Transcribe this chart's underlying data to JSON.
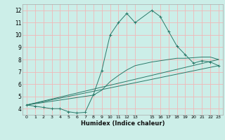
{
  "xlabel": "Humidex (Indice chaleur)",
  "background_color": "#cceee8",
  "grid_color": "#f0b8b8",
  "line_color": "#2a7a6a",
  "xlim": [
    -0.5,
    23.5
  ],
  "ylim": [
    3.5,
    12.5
  ],
  "xticks": [
    0,
    1,
    2,
    3,
    4,
    5,
    6,
    7,
    8,
    9,
    10,
    11,
    12,
    13,
    15,
    16,
    17,
    18,
    19,
    20,
    21,
    22,
    23
  ],
  "yticks": [
    4,
    5,
    6,
    7,
    8,
    9,
    10,
    11,
    12
  ],
  "series1_x": [
    0,
    1,
    2,
    3,
    4,
    5,
    6,
    7,
    8,
    9,
    10,
    11,
    12,
    13,
    15,
    16,
    17,
    18,
    19,
    20,
    21,
    22,
    23
  ],
  "series1_y": [
    4.3,
    4.2,
    4.1,
    4.0,
    4.0,
    3.75,
    3.65,
    3.7,
    5.15,
    7.1,
    10.0,
    11.0,
    11.75,
    11.0,
    12.0,
    11.5,
    10.3,
    9.1,
    8.4,
    7.7,
    7.9,
    7.8,
    7.5
  ],
  "series2_x": [
    0,
    23
  ],
  "series2_y": [
    4.3,
    7.5
  ],
  "series3_x": [
    0,
    23
  ],
  "series3_y": [
    4.3,
    8.0
  ],
  "series4_x": [
    0,
    8,
    9,
    10,
    11,
    12,
    13,
    15,
    16,
    17,
    18,
    19,
    20,
    21,
    22,
    23
  ],
  "series4_y": [
    4.3,
    5.1,
    5.5,
    6.2,
    6.7,
    7.15,
    7.5,
    7.8,
    7.9,
    8.0,
    8.1,
    8.1,
    8.15,
    8.2,
    8.2,
    8.0
  ]
}
